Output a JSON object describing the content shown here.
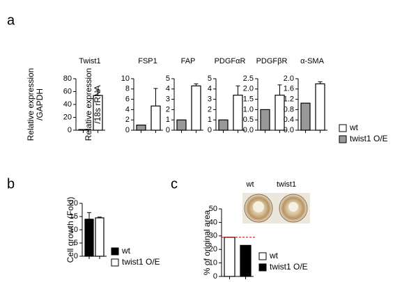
{
  "chart_data": [
    {
      "type": "bar",
      "panel": "a",
      "title": "Twist1",
      "ylabel": [
        "Relative expression",
        "/GAPDH"
      ],
      "values": [
        1,
        54
      ],
      "errors": [
        null,
        8
      ],
      "colors": [
        "#999999",
        "#ffffff"
      ],
      "ylim": [
        0,
        80
      ],
      "yticks": [
        0,
        20,
        40,
        60,
        80
      ],
      "legend": [
        {
          "name": "wt",
          "color": "#ffffff"
        },
        {
          "name": "twist1 O/E",
          "color": "#999999"
        }
      ]
    },
    {
      "type": "bar",
      "title": "FSP1",
      "ylabel": [
        "Relative expression",
        "/18s rRNA"
      ],
      "values": [
        1,
        4.7
      ],
      "errors": [
        null,
        3.4
      ],
      "colors": [
        "#999999",
        "#ffffff"
      ],
      "ylim": [
        0,
        10
      ],
      "yticks": [
        0,
        2,
        4,
        6,
        8,
        10
      ]
    },
    {
      "type": "bar",
      "title": "FAP",
      "values": [
        1,
        4.3
      ],
      "errors": [
        null,
        0.2
      ],
      "colors": [
        "#999999",
        "#ffffff"
      ],
      "ylim": [
        0,
        5
      ],
      "yticks": [
        0,
        1,
        2,
        3,
        4,
        5
      ]
    },
    {
      "type": "bar",
      "title": "PDGFαR",
      "values": [
        1,
        3.4
      ],
      "errors": [
        null,
        0.9
      ],
      "colors": [
        "#999999",
        "#ffffff"
      ],
      "ylim": [
        0,
        5
      ],
      "yticks": [
        0,
        1,
        2,
        3,
        4,
        5
      ]
    },
    {
      "type": "bar",
      "title": "PDGFβR",
      "values": [
        1,
        1.7
      ],
      "errors": [
        null,
        0.5
      ],
      "colors": [
        "#999999",
        "#ffffff"
      ],
      "ylim": [
        0,
        2.5
      ],
      "yticks": [
        {
          "value": 0,
          "label": "0.0"
        },
        {
          "value": 0.5,
          "label": "0.5"
        },
        {
          "value": 1,
          "label": "1.0"
        },
        {
          "value": 1.5,
          "label": "1.5"
        },
        {
          "value": 2,
          "label": "2.0"
        },
        {
          "value": 2.5,
          "label": "2.5"
        }
      ]
    },
    {
      "type": "bar",
      "title": "α-SMA",
      "values": [
        1.05,
        1.8
      ],
      "errors": [
        null,
        0.08
      ],
      "colors": [
        "#999999",
        "#ffffff"
      ],
      "ylim": [
        0,
        2
      ],
      "yticks": [
        {
          "value": 0,
          "label": "0.0"
        },
        {
          "value": 0.4,
          "label": "0.4"
        },
        {
          "value": 0.8,
          "label": "0.8"
        },
        {
          "value": 1.2,
          "label": "1.2"
        },
        {
          "value": 1.6,
          "label": "1.6"
        },
        {
          "value": 2,
          "label": "2.0"
        }
      ]
    },
    {
      "type": "bar",
      "panel": "b",
      "ylabel": [
        "Cell growth (Fold)"
      ],
      "values": [
        14,
        14.5
      ],
      "errors": [
        2.5,
        0.3
      ],
      "colors": [
        "#000000",
        "#ffffff"
      ],
      "ylim": [
        0,
        20
      ],
      "yticks": [
        0,
        5,
        10,
        15,
        20
      ],
      "legend": [
        {
          "name": "wt",
          "color": "#000000"
        },
        {
          "name": "twist1 O/E",
          "color": "#ffffff"
        }
      ]
    },
    {
      "type": "bar",
      "panel": "c",
      "ylabel": [
        "% of original area"
      ],
      "values": [
        29,
        23
      ],
      "errors": [
        null,
        null
      ],
      "colors": [
        "#ffffff",
        "#000000"
      ],
      "ylim": [
        0,
        50
      ],
      "yticks": [
        0,
        10,
        20,
        30,
        40,
        50
      ],
      "reference_line": 29,
      "reference_color": "#cc0000",
      "image_labels": [
        "wt",
        "twist1"
      ],
      "legend": [
        {
          "name": "wt",
          "color": "#ffffff"
        },
        {
          "name": "twist1 O/E",
          "color": "#000000"
        }
      ]
    }
  ]
}
